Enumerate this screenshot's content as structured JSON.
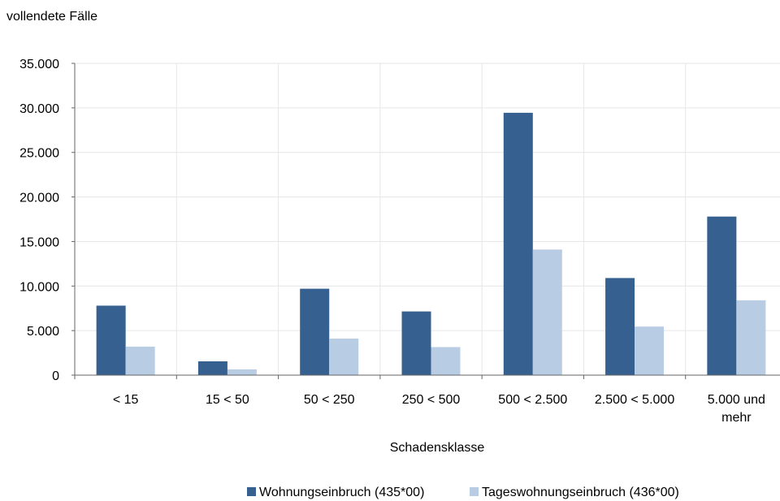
{
  "chart_data": {
    "type": "bar",
    "ylabel": "vollendete Fälle",
    "xlabel": "Schadensklasse",
    "categories": [
      "< 15",
      "15 < 50",
      "50 < 250",
      "250 < 500",
      "500 < 2.500",
      "2.500 < 5.000",
      "5.000 und mehr"
    ],
    "series": [
      {
        "name": "Wohnungseinbruch (435*00)",
        "color": "#36608F",
        "values": [
          7800,
          1550,
          9700,
          7150,
          29450,
          10900,
          17800
        ]
      },
      {
        "name": "Tageswohnungseinbruch (436*00)",
        "color": "#B8CDE4",
        "values": [
          3200,
          650,
          4100,
          3150,
          14100,
          5450,
          8400
        ]
      }
    ],
    "ylim": [
      0,
      35000
    ],
    "yticks": [
      0,
      5000,
      10000,
      15000,
      20000,
      25000,
      30000,
      35000
    ],
    "ytick_labels": [
      "0",
      "5.000",
      "10.000",
      "15.000",
      "20.000",
      "25.000",
      "30.000",
      "35.000"
    ],
    "grid": true,
    "legend_position": "bottom-right"
  }
}
